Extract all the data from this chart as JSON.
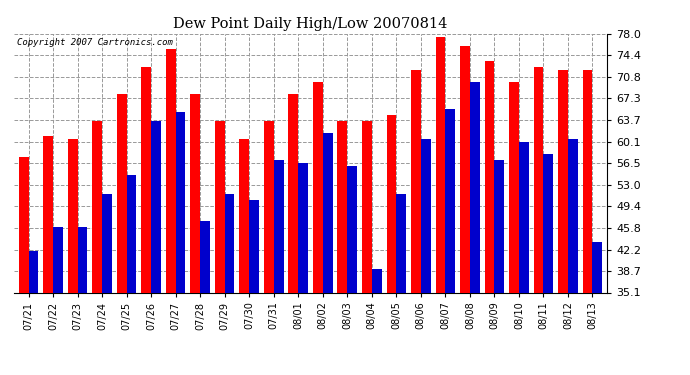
{
  "title": "Dew Point Daily High/Low 20070814",
  "copyright": "Copyright 2007 Cartronics.com",
  "dates": [
    "07/21",
    "07/22",
    "07/23",
    "07/24",
    "07/25",
    "07/26",
    "07/27",
    "07/28",
    "07/29",
    "07/30",
    "07/31",
    "08/01",
    "08/02",
    "08/03",
    "08/04",
    "08/05",
    "08/06",
    "08/07",
    "08/08",
    "08/09",
    "08/10",
    "08/11",
    "08/12",
    "08/13"
  ],
  "highs": [
    57.5,
    61.0,
    60.5,
    63.5,
    68.0,
    72.5,
    75.5,
    68.0,
    63.5,
    60.5,
    63.5,
    68.0,
    70.0,
    63.5,
    63.5,
    64.5,
    72.0,
    77.5,
    76.0,
    73.5,
    70.0,
    72.5,
    72.0,
    72.0
  ],
  "lows": [
    42.0,
    46.0,
    46.0,
    51.5,
    54.5,
    63.5,
    65.0,
    47.0,
    51.5,
    50.5,
    57.0,
    56.5,
    61.5,
    56.0,
    39.0,
    51.5,
    60.5,
    65.5,
    70.0,
    57.0,
    60.0,
    58.0,
    60.5,
    43.5
  ],
  "high_color": "#ff0000",
  "low_color": "#0000cc",
  "bg_color": "#ffffff",
  "grid_color": "#999999",
  "yticks": [
    35.1,
    38.7,
    42.2,
    45.8,
    49.4,
    53.0,
    56.5,
    60.1,
    63.7,
    67.3,
    70.8,
    74.4,
    78.0
  ],
  "ymin": 35.1,
  "ymax": 78.0,
  "bar_bottom": 35.1
}
